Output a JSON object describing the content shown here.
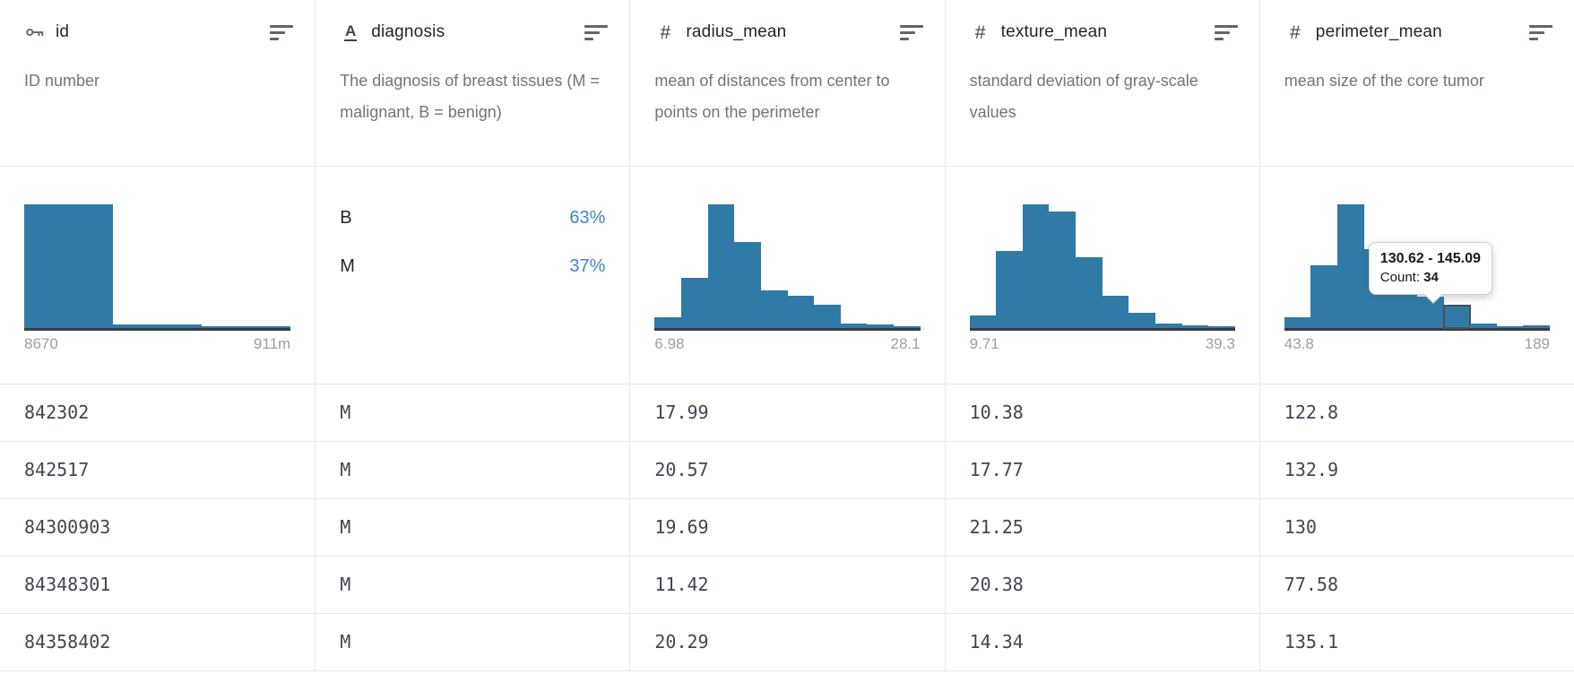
{
  "colors": {
    "bar": "#2f7aa6",
    "percent": "#3f86c9",
    "baseline": "#363d45",
    "hover_outline": "#4a515a"
  },
  "table": {
    "columns": [
      {
        "name": "id",
        "icon": "key-icon",
        "description": "ID number",
        "summary": {
          "kind": "histogram",
          "hist_index": 0,
          "min_label": "8670",
          "max_label": "911m"
        },
        "cells": [
          "842302",
          "842517",
          "84300903",
          "84348301",
          "84358402"
        ]
      },
      {
        "name": "diagnosis",
        "icon": "text-type-icon",
        "description": "The diagnosis of breast tissues (M = malignant, B = benign)",
        "summary": {
          "kind": "categories",
          "items": [
            {
              "label": "B",
              "value": "63%"
            },
            {
              "label": "M",
              "value": "37%"
            }
          ]
        },
        "cells": [
          "M",
          "M",
          "M",
          "M",
          "M"
        ]
      },
      {
        "name": "radius_mean",
        "icon": "number-icon",
        "description": "mean of distances from center to points on the perimeter",
        "summary": {
          "kind": "histogram",
          "hist_index": 1,
          "min_label": "6.98",
          "max_label": "28.1"
        },
        "cells": [
          "17.99",
          "20.57",
          "19.69",
          "11.42",
          "20.29"
        ]
      },
      {
        "name": "texture_mean",
        "icon": "number-icon",
        "description": "standard deviation of gray-scale values",
        "summary": {
          "kind": "histogram",
          "hist_index": 2,
          "min_label": "9.71",
          "max_label": "39.3"
        },
        "cells": [
          "10.38",
          "17.77",
          "21.25",
          "20.38",
          "14.34"
        ]
      },
      {
        "name": "perimeter_mean",
        "icon": "number-icon",
        "description": "mean size of the core tumor",
        "summary": {
          "kind": "histogram",
          "hist_index": 3,
          "min_label": "43.8",
          "max_label": "189"
        },
        "cells": [
          "122.8",
          "132.9",
          "130",
          "77.58",
          "135.1"
        ]
      }
    ]
  },
  "tooltip": {
    "range": "130.62 - 145.09",
    "count_label": "Count:",
    "count": "34"
  },
  "chart_data": [
    {
      "type": "bar",
      "subtype": "histogram",
      "column": "id",
      "x_range_labels": [
        "8670",
        "911m"
      ],
      "bins": 3,
      "counts_estimated": [
        555,
        15,
        6
      ],
      "note": "counts estimated from bar pixel heights"
    },
    {
      "type": "bar",
      "subtype": "histogram",
      "column": "radius_mean",
      "x_range_labels": [
        "6.98",
        "28.1"
      ],
      "xlim": [
        6.98,
        28.1
      ],
      "bins": 10,
      "counts_estimated": [
        16,
        76,
        186,
        129,
        56,
        49,
        35,
        7,
        5,
        3
      ]
    },
    {
      "type": "bar",
      "subtype": "histogram",
      "column": "texture_mean",
      "x_range_labels": [
        "9.71",
        "39.3"
      ],
      "xlim": [
        9.71,
        39.3
      ],
      "bins": 10,
      "counts_estimated": [
        18,
        114,
        184,
        173,
        105,
        48,
        23,
        7,
        4,
        3
      ]
    },
    {
      "type": "bar",
      "subtype": "histogram",
      "column": "perimeter_mean",
      "x_range_labels": [
        "43.8",
        "189"
      ],
      "xlim": [
        43.8,
        189
      ],
      "bins": 10,
      "counts_estimated": [
        16,
        95,
        188,
        120,
        61,
        48,
        34,
        7,
        3,
        4
      ],
      "hovered_bin": {
        "index": 6,
        "range": "130.62 - 145.09",
        "count": 34
      }
    },
    {
      "type": "bar",
      "subtype": "categorical",
      "column": "diagnosis",
      "categories": [
        "B",
        "M"
      ],
      "percentages": [
        63,
        37
      ]
    }
  ]
}
